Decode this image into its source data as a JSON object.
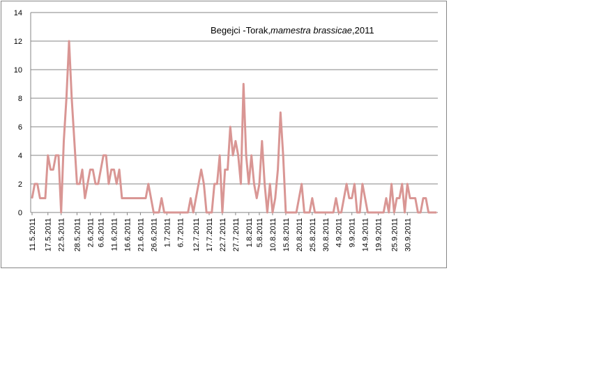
{
  "chart_data": {
    "type": "line",
    "title_parts": [
      "Begejci -Torak,",
      "mamestra brassicae",
      ",2011"
    ],
    "xlabel": "",
    "ylabel": "",
    "ylim": [
      0,
      14
    ],
    "yticks": [
      0,
      2,
      4,
      6,
      8,
      10,
      12,
      14
    ],
    "grid": true,
    "legend": "none",
    "series_color": "#D99694",
    "x_start": "2011-05-11",
    "x_end": "2011-10-03",
    "xtick_labels": [
      "11.5.2011",
      "17.5.2011",
      "22.5.2011",
      "28.5.2011",
      "2.6.2011",
      "6.6.2011",
      "11.6.2011",
      "16.6.2011",
      "21.6.2011",
      "26.6.2011",
      "1.7.2011",
      "6.7.2011",
      "12.7.2011",
      "17.7.2011",
      "22.7.2011",
      "27.7.2011",
      "1.8.2011",
      "5.8.2011",
      "10.8.2011",
      "15.8.2011",
      "20.8.2011",
      "25.8.2011",
      "30.8.2011",
      "4.9.2011",
      "9.9.2011",
      "14.9.2011",
      "19.9.2011",
      "25.9.2011",
      "30.9.2011"
    ],
    "values": [
      1,
      2,
      2,
      1,
      1,
      1,
      4,
      3,
      3,
      4,
      4,
      0,
      5,
      8,
      12,
      8,
      5,
      2,
      2,
      3,
      1,
      2,
      3,
      3,
      2,
      2,
      3,
      4,
      4,
      2,
      3,
      3,
      2,
      3,
      1,
      1,
      1,
      1,
      1,
      1,
      1,
      1,
      1,
      1,
      2,
      1,
      0,
      0,
      0,
      1,
      0,
      0,
      0,
      0,
      0,
      0,
      0,
      0,
      0,
      0,
      1,
      0,
      1,
      2,
      3,
      2,
      0,
      0,
      0,
      2,
      2,
      4,
      0,
      3,
      3,
      6,
      4,
      5,
      4,
      2,
      9,
      4,
      2,
      4,
      2,
      1,
      2,
      5,
      2,
      0,
      2,
      0,
      1,
      3,
      7,
      4,
      0,
      0,
      0,
      0,
      0,
      1,
      2,
      0,
      0,
      0,
      1,
      0,
      0,
      0,
      0,
      0,
      0,
      0,
      0,
      1,
      0,
      0,
      1,
      2,
      1,
      1,
      2,
      0,
      0,
      2,
      1,
      0,
      0,
      0,
      0,
      0,
      0,
      0,
      1,
      0,
      2,
      0,
      1,
      1,
      2,
      0,
      2,
      1,
      1,
      1,
      0,
      0,
      1,
      1,
      0,
      0,
      0,
      0
    ]
  }
}
